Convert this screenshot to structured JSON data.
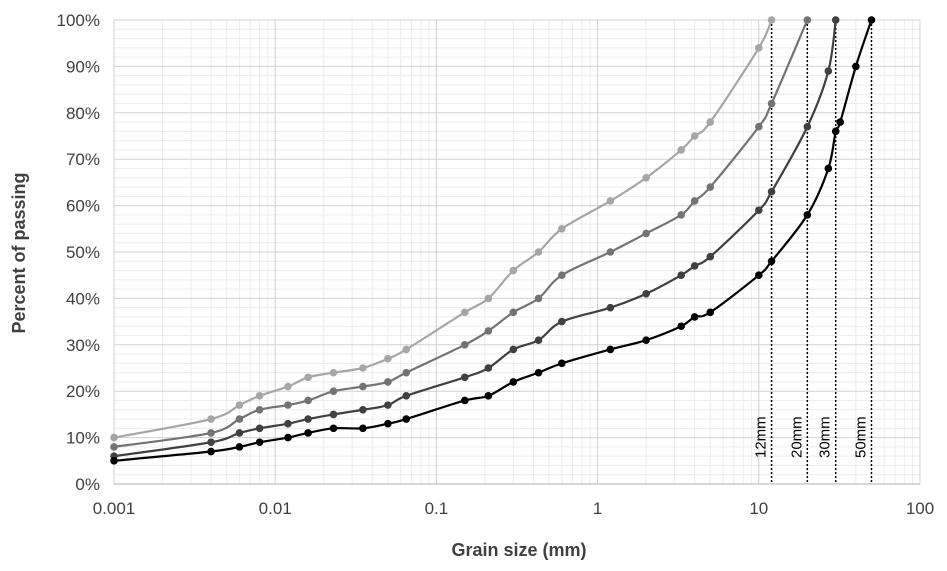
{
  "chart_data": {
    "type": "line",
    "xscale": "log",
    "xlim": [
      0.001,
      100
    ],
    "ylim": [
      0,
      100
    ],
    "xlabel": "Grain size (mm)",
    "ylabel": "Percent of passing",
    "x_ticks": [
      "0.001",
      "0.01",
      "0.1",
      "1",
      "10",
      "100"
    ],
    "y_ticks": [
      "0%",
      "10%",
      "20%",
      "30%",
      "40%",
      "50%",
      "60%",
      "70%",
      "80%",
      "90%",
      "100%"
    ],
    "grid": true,
    "series": [
      {
        "color": "#a6a6a6",
        "points": [
          [
            0.001,
            10
          ],
          [
            0.004,
            14
          ],
          [
            0.006,
            17
          ],
          [
            0.008,
            19
          ],
          [
            0.012,
            21
          ],
          [
            0.016,
            23
          ],
          [
            0.023,
            24
          ],
          [
            0.035,
            25
          ],
          [
            0.05,
            27
          ],
          [
            0.065,
            29
          ],
          [
            0.15,
            37
          ],
          [
            0.21,
            40
          ],
          [
            0.3,
            46
          ],
          [
            0.43,
            50
          ],
          [
            0.6,
            55
          ],
          [
            1.2,
            61
          ],
          [
            2,
            66
          ],
          [
            3.3,
            72
          ],
          [
            4,
            75
          ],
          [
            5,
            78
          ],
          [
            10,
            94
          ],
          [
            12,
            100
          ]
        ]
      },
      {
        "color": "#737373",
        "points": [
          [
            0.001,
            8
          ],
          [
            0.004,
            11
          ],
          [
            0.006,
            14
          ],
          [
            0.008,
            16
          ],
          [
            0.012,
            17
          ],
          [
            0.016,
            18
          ],
          [
            0.023,
            20
          ],
          [
            0.035,
            21
          ],
          [
            0.05,
            22
          ],
          [
            0.065,
            24
          ],
          [
            0.15,
            30
          ],
          [
            0.21,
            33
          ],
          [
            0.3,
            37
          ],
          [
            0.43,
            40
          ],
          [
            0.6,
            45
          ],
          [
            1.2,
            50
          ],
          [
            2,
            54
          ],
          [
            3.3,
            58
          ],
          [
            4,
            61
          ],
          [
            5,
            64
          ],
          [
            10,
            77
          ],
          [
            12,
            82
          ],
          [
            20,
            100
          ]
        ]
      },
      {
        "color": "#404040",
        "points": [
          [
            0.001,
            6
          ],
          [
            0.004,
            9
          ],
          [
            0.006,
            11
          ],
          [
            0.008,
            12
          ],
          [
            0.012,
            13
          ],
          [
            0.016,
            14
          ],
          [
            0.023,
            15
          ],
          [
            0.035,
            16
          ],
          [
            0.05,
            17
          ],
          [
            0.065,
            19
          ],
          [
            0.15,
            23
          ],
          [
            0.21,
            25
          ],
          [
            0.3,
            29
          ],
          [
            0.43,
            31
          ],
          [
            0.6,
            35
          ],
          [
            1.2,
            38
          ],
          [
            2,
            41
          ],
          [
            3.3,
            45
          ],
          [
            4,
            47
          ],
          [
            5,
            49
          ],
          [
            10,
            59
          ],
          [
            12,
            63
          ],
          [
            20,
            77
          ],
          [
            27,
            89
          ],
          [
            30,
            100
          ]
        ]
      },
      {
        "color": "#000000",
        "points": [
          [
            0.001,
            5
          ],
          [
            0.004,
            7
          ],
          [
            0.006,
            8
          ],
          [
            0.008,
            9
          ],
          [
            0.012,
            10
          ],
          [
            0.016,
            11
          ],
          [
            0.023,
            12
          ],
          [
            0.035,
            12
          ],
          [
            0.05,
            13
          ],
          [
            0.065,
            14
          ],
          [
            0.15,
            18
          ],
          [
            0.21,
            19
          ],
          [
            0.3,
            22
          ],
          [
            0.43,
            24
          ],
          [
            0.6,
            26
          ],
          [
            1.2,
            29
          ],
          [
            2,
            31
          ],
          [
            3.3,
            34
          ],
          [
            4,
            36
          ],
          [
            5,
            37
          ],
          [
            10,
            45
          ],
          [
            12,
            48
          ],
          [
            20,
            58
          ],
          [
            27,
            68
          ],
          [
            30,
            76
          ],
          [
            32,
            78
          ],
          [
            40,
            90
          ],
          [
            50,
            100
          ]
        ]
      }
    ],
    "vlines": [
      {
        "x": 12,
        "label": "12mm"
      },
      {
        "x": 20,
        "label": "20mm"
      },
      {
        "x": 30,
        "label": "30mm"
      },
      {
        "x": 50,
        "label": "50mm"
      }
    ]
  }
}
